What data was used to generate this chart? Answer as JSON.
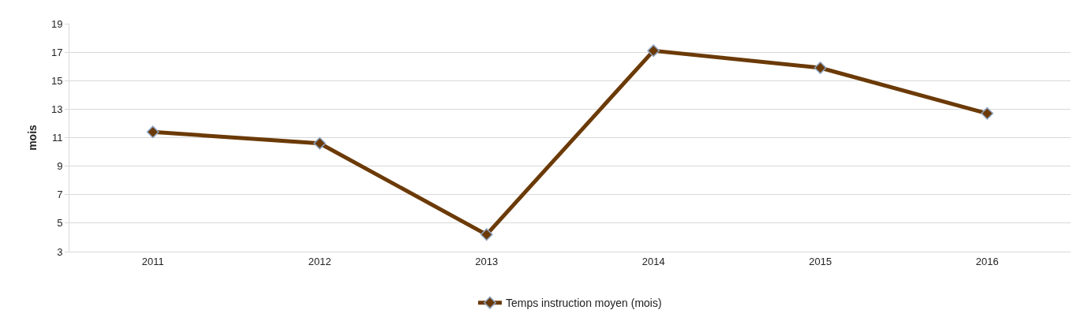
{
  "chart_data": {
    "type": "line",
    "ylabel": "mois",
    "categories": [
      "2011",
      "2012",
      "2013",
      "2014",
      "2015",
      "2016"
    ],
    "series": [
      {
        "name": "Temps instruction moyen (mois)",
        "color": "#6b3a07",
        "values": [
          11.4,
          10.6,
          4.2,
          17.1,
          15.9,
          12.7
        ]
      }
    ],
    "ylim": [
      3,
      19
    ],
    "yticks": [
      3,
      5,
      7,
      9,
      11,
      13,
      15,
      17,
      19
    ],
    "grid": "y",
    "legend": "bottom",
    "marker": "diamond",
    "line_style": "solid"
  }
}
